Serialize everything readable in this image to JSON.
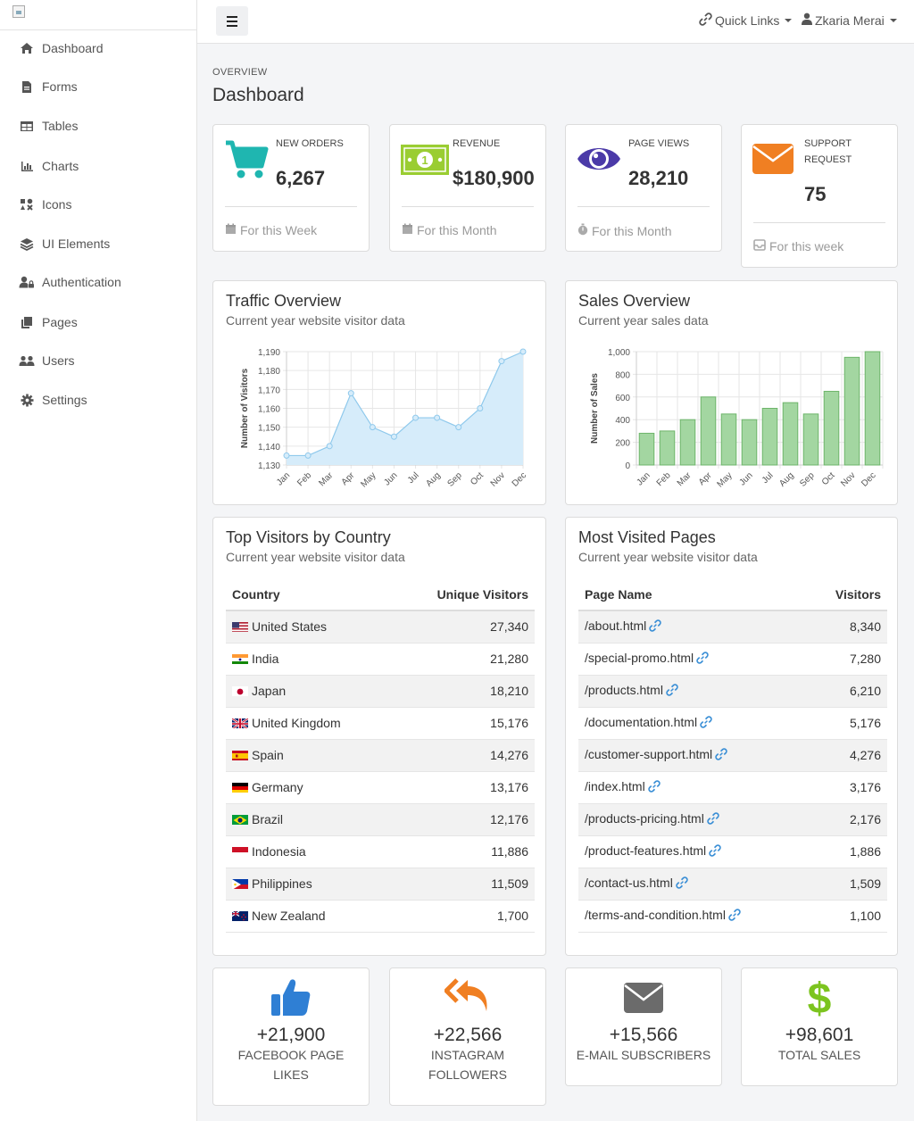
{
  "sidebar": {
    "items": [
      {
        "label": "Dashboard",
        "icon": "home-icon"
      },
      {
        "label": "Forms",
        "icon": "file-icon"
      },
      {
        "label": "Tables",
        "icon": "table-icon"
      },
      {
        "label": "Charts",
        "icon": "chart-icon"
      },
      {
        "label": "Icons",
        "icon": "icons-icon"
      },
      {
        "label": "UI Elements",
        "icon": "layers-icon"
      },
      {
        "label": "Authentication",
        "icon": "user-lock-icon"
      },
      {
        "label": "Pages",
        "icon": "copy-icon"
      },
      {
        "label": "Users",
        "icon": "users-icon"
      },
      {
        "label": "Settings",
        "icon": "gear-icon"
      }
    ]
  },
  "header": {
    "quick_links": "Quick Links",
    "user_name": "Zkaria Merai"
  },
  "page": {
    "overline": "OVERVIEW",
    "title": "Dashboard"
  },
  "stats": [
    {
      "label": "NEW ORDERS",
      "value": "6,267",
      "footer": "For this Week",
      "icon": "cart-icon",
      "color": "#1fb6b0"
    },
    {
      "label": "REVENUE",
      "value": "$180,900",
      "footer": "For this Month",
      "icon": "money-icon",
      "color": "#9acd32"
    },
    {
      "label": "PAGE VIEWS",
      "value": "28,210",
      "footer": "For this Month",
      "icon": "eye-icon",
      "color": "#4b3aa8"
    },
    {
      "label": "SUPPORT REQUEST",
      "value": "75",
      "footer": "For this week",
      "icon": "envelope-icon",
      "color": "#f07f22"
    }
  ],
  "traffic": {
    "title": "Traffic Overview",
    "subtitle": "Current year website visitor data"
  },
  "sales": {
    "title": "Sales Overview",
    "subtitle": "Current year sales data"
  },
  "chart_data": [
    {
      "type": "area",
      "categories": [
        "Jan",
        "Feb",
        "Mar",
        "Apr",
        "May",
        "Jun",
        "Jul",
        "Aug",
        "Sep",
        "Oct",
        "Nov",
        "Dec"
      ],
      "values": [
        1135,
        1135,
        1140,
        1168,
        1150,
        1145,
        1155,
        1155,
        1150,
        1160,
        1185,
        1190
      ],
      "ylabel": "Number of Visitors",
      "yticks": [
        "1,130",
        "1,140",
        "1,150",
        "1,160",
        "1,170",
        "1,180",
        "1,190"
      ],
      "ylim": [
        1130,
        1190
      ],
      "color": "#8fc9ec",
      "grid": true
    },
    {
      "type": "bar",
      "categories": [
        "Jan",
        "Feb",
        "Mar",
        "Apr",
        "May",
        "Jun",
        "Jul",
        "Aug",
        "Sep",
        "Oct",
        "Nov",
        "Dec"
      ],
      "values": [
        280,
        300,
        400,
        600,
        450,
        400,
        500,
        550,
        450,
        650,
        950,
        1000
      ],
      "ylabel": "Number of Sales",
      "yticks": [
        "0",
        "200",
        "400",
        "600",
        "800",
        "1,000"
      ],
      "ylim": [
        0,
        1000
      ],
      "color": "#a3d6a1",
      "grid": true
    }
  ],
  "countries": {
    "title": "Top Visitors by Country",
    "subtitle": "Current year website visitor data",
    "col1": "Country",
    "col2": "Unique Visitors",
    "rows": [
      {
        "name": "United States",
        "value": "27,340",
        "flag": "us"
      },
      {
        "name": "India",
        "value": "21,280",
        "flag": "in"
      },
      {
        "name": "Japan",
        "value": "18,210",
        "flag": "jp"
      },
      {
        "name": "United Kingdom",
        "value": "15,176",
        "flag": "gb"
      },
      {
        "name": "Spain",
        "value": "14,276",
        "flag": "es"
      },
      {
        "name": "Germany",
        "value": "13,176",
        "flag": "de"
      },
      {
        "name": "Brazil",
        "value": "12,176",
        "flag": "br"
      },
      {
        "name": "Indonesia",
        "value": "11,886",
        "flag": "id"
      },
      {
        "name": "Philippines",
        "value": "11,509",
        "flag": "ph"
      },
      {
        "name": "New Zealand",
        "value": "1,700",
        "flag": "nz"
      }
    ]
  },
  "pages": {
    "title": "Most Visited Pages",
    "subtitle": "Current year website visitor data",
    "col1": "Page Name",
    "col2": "Visitors",
    "rows": [
      {
        "name": "/about.html",
        "value": "8,340"
      },
      {
        "name": "/special-promo.html",
        "value": "7,280"
      },
      {
        "name": "/products.html",
        "value": "6,210"
      },
      {
        "name": "/documentation.html",
        "value": "5,176"
      },
      {
        "name": "/customer-support.html",
        "value": "4,276"
      },
      {
        "name": "/index.html",
        "value": "3,176"
      },
      {
        "name": "/products-pricing.html",
        "value": "2,176"
      },
      {
        "name": "/product-features.html",
        "value": "1,886"
      },
      {
        "name": "/contact-us.html",
        "value": "1,509"
      },
      {
        "name": "/terms-and-condition.html",
        "value": "1,100"
      }
    ]
  },
  "social": [
    {
      "value": "+21,900",
      "label1": "FACEBOOK PAGE",
      "label2": "LIKES",
      "icon": "thumbs-up-icon",
      "color": "#2f7fd4"
    },
    {
      "value": "+22,566",
      "label1": "INSTAGRAM",
      "label2": "FOLLOWERS",
      "icon": "reply-all-icon",
      "color": "#f07f22"
    },
    {
      "value": "+15,566",
      "label1": "E-MAIL SUBSCRIBERS",
      "label2": "",
      "icon": "envelope-icon",
      "color": "#6b6b6b"
    },
    {
      "value": "+98,601",
      "label1": "TOTAL SALES",
      "label2": "",
      "icon": "dollar-icon",
      "color": "#7cc41f"
    }
  ]
}
